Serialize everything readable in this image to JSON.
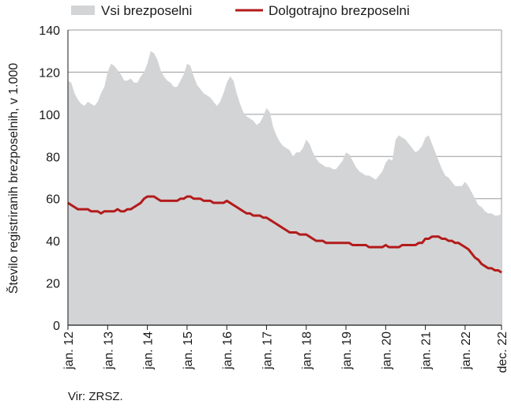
{
  "chart_data": {
    "type": "area",
    "title": "",
    "xlabel": "",
    "ylabel": "Število registriranih brezposelnih, v 1.000",
    "ylim": [
      0,
      140
    ],
    "yticks": [
      0,
      20,
      40,
      60,
      80,
      100,
      120,
      140
    ],
    "grid": true,
    "legend_position": "top",
    "x_start": "jan. 12",
    "x_end": "dec. 22",
    "xtick_labels": [
      "jan. 12",
      "jan. 13",
      "jan. 14",
      "jan. 15",
      "jan. 16",
      "jan. 17",
      "jan. 18",
      "jan. 19",
      "jan. 20",
      "jan. 21",
      "jan. 22",
      "dec. 22"
    ],
    "series": [
      {
        "name": "Vsi brezposelni",
        "kind": "area",
        "color": "#d3d4d6",
        "values": [
          116,
          115,
          110,
          107,
          105,
          104,
          106,
          105,
          104,
          106,
          110,
          113,
          120,
          124,
          123,
          121,
          119,
          116,
          116,
          117,
          115,
          115,
          118,
          120,
          124,
          130,
          129,
          126,
          121,
          118,
          116,
          115,
          113,
          113,
          116,
          119,
          124,
          123,
          118,
          114,
          112,
          110,
          109,
          108,
          106,
          104,
          106,
          110,
          115,
          118,
          116,
          110,
          105,
          101,
          99,
          98,
          97,
          95,
          96,
          99,
          103,
          101,
          94,
          90,
          87,
          85,
          84,
          83,
          80,
          82,
          82,
          84,
          88,
          86,
          82,
          79,
          77,
          76,
          75,
          75,
          74,
          74,
          76,
          78,
          82,
          81,
          78,
          75,
          73,
          72,
          71,
          71,
          70,
          69,
          71,
          73,
          77,
          79,
          78,
          88,
          90,
          89,
          88,
          86,
          84,
          82,
          83,
          85,
          89,
          90,
          86,
          82,
          78,
          74,
          71,
          70,
          68,
          66,
          66,
          66,
          68,
          66,
          63,
          60,
          57,
          56,
          54,
          53,
          53,
          52,
          52,
          53
        ]
      },
      {
        "name": "Dolgotrajno brezposelni",
        "kind": "line",
        "color": "#b31b1b",
        "values": [
          58,
          57,
          56,
          55,
          55,
          55,
          55,
          54,
          54,
          54,
          53,
          54,
          54,
          54,
          54,
          55,
          54,
          54,
          55,
          55,
          56,
          57,
          58,
          60,
          61,
          61,
          61,
          60,
          59,
          59,
          59,
          59,
          59,
          59,
          60,
          60,
          61,
          61,
          60,
          60,
          60,
          59,
          59,
          59,
          58,
          58,
          58,
          58,
          59,
          58,
          57,
          56,
          55,
          54,
          53,
          53,
          52,
          52,
          52,
          51,
          51,
          50,
          49,
          48,
          47,
          46,
          45,
          44,
          44,
          44,
          43,
          43,
          43,
          42,
          41,
          40,
          40,
          40,
          39,
          39,
          39,
          39,
          39,
          39,
          39,
          39,
          38,
          38,
          38,
          38,
          38,
          37,
          37,
          37,
          37,
          37,
          38,
          37,
          37,
          37,
          37,
          38,
          38,
          38,
          38,
          38,
          39,
          39,
          41,
          41,
          42,
          42,
          42,
          41,
          41,
          40,
          40,
          39,
          39,
          38,
          37,
          36,
          34,
          32,
          31,
          29,
          28,
          27,
          27,
          26,
          26,
          25
        ]
      }
    ]
  },
  "footer": {
    "source": "Vir: ZRSZ."
  }
}
